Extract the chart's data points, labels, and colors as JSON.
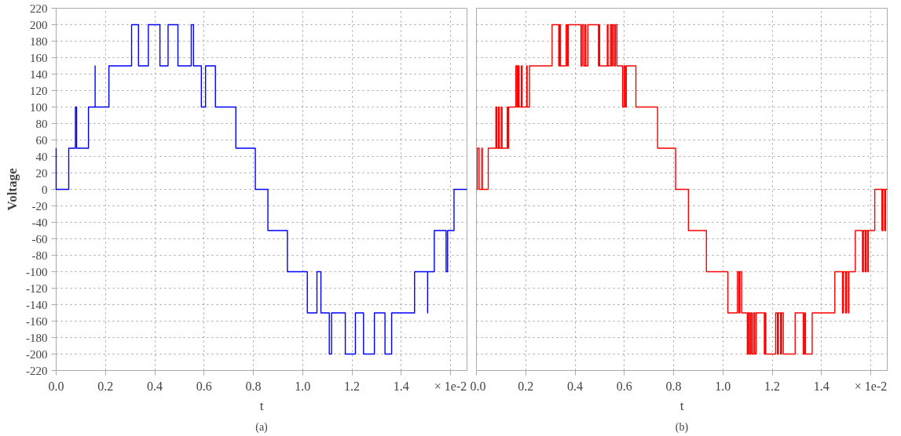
{
  "chart_data": [
    {
      "type": "step",
      "xlabel": "t",
      "ylabel": "Voltage",
      "annotations": [
        "(a)",
        "× 1e-2"
      ],
      "grid": true,
      "xlim": [
        0,
        1.6667
      ],
      "ylim": [
        -220,
        220
      ],
      "xticks": [
        {
          "value": 0,
          "label": "0.0"
        },
        0.2,
        0.4,
        0.6,
        0.8,
        {
          "value": 1,
          "label": "1.0"
        },
        1.2,
        1.4,
        {
          "value": 1.6,
          "label": null
        }
      ],
      "yticks": [
        -220,
        -200,
        -180,
        -160,
        -140,
        -120,
        -100,
        -80,
        -60,
        -40,
        -20,
        0,
        20,
        40,
        60,
        80,
        100,
        120,
        140,
        160,
        180,
        200,
        220
      ],
      "series": [
        {
          "color": "#0000ff",
          "x": [
            0,
            0,
            0.051,
            0.078,
            0.083,
            0.131,
            0.158,
            0.158,
            0.214,
            0.306,
            0.334,
            0.374,
            0.421,
            0.454,
            0.494,
            0.548,
            0.557,
            0.589,
            0.606,
            0.646,
            0.729,
            0.808,
            0.859,
            0.938,
            1.019,
            1.058,
            1.074,
            1.108,
            1.117,
            1.173,
            1.214,
            1.247,
            1.291,
            1.334,
            1.361,
            1.454,
            1.507,
            1.507,
            1.534,
            1.582,
            1.588,
            1.614,
            1.6667
          ],
          "values": [
            50,
            0,
            50,
            100,
            50,
            100,
            150,
            100,
            150,
            200,
            150,
            200,
            150,
            200,
            150,
            200,
            150,
            100,
            150,
            100,
            50,
            0,
            -50,
            -100,
            -150,
            -100,
            -150,
            -200,
            -150,
            -200,
            -150,
            -200,
            -150,
            -200,
            -150,
            -100,
            -150,
            -100,
            -50,
            -100,
            -50,
            0,
            0
          ]
        }
      ]
    },
    {
      "type": "step",
      "xlabel": "t",
      "annotations": [
        "(b)",
        "× 1e-2"
      ],
      "grid": true,
      "tick_labels": "x",
      "xlim": [
        0,
        1.6667
      ],
      "ylim": [
        -220,
        220
      ],
      "xticks": [
        {
          "value": 0,
          "label": "0.0"
        },
        0.2,
        0.4,
        0.6,
        0.8,
        {
          "value": 1,
          "label": "1.0"
        },
        1.2,
        1.4,
        {
          "value": 1.6,
          "label": null
        }
      ],
      "yticks": [
        -220,
        -200,
        -180,
        -160,
        -140,
        -120,
        -100,
        -80,
        -60,
        -40,
        -20,
        0,
        20,
        40,
        60,
        80,
        100,
        120,
        140,
        160,
        180,
        200,
        220
      ],
      "series": [
        {
          "color": "#ff0000",
          "x": [
            0,
            0.004,
            0.011,
            0.022,
            0.024,
            0.048,
            0.079,
            0.083,
            0.09,
            0.093,
            0.101,
            0.104,
            0.125,
            0.127,
            0.131,
            0.16,
            0.165,
            0.169,
            0.173,
            0.182,
            0.185,
            0.204,
            0.206,
            0.215,
            0.307,
            0.334,
            0.338,
            0.341,
            0.364,
            0.369,
            0.373,
            0.424,
            0.429,
            0.435,
            0.441,
            0.444,
            0.452,
            0.495,
            0.498,
            0.5,
            0.531,
            0.534,
            0.544,
            0.549,
            0.553,
            0.559,
            0.564,
            0.57,
            0.593,
            0.599,
            0.604,
            0.608,
            0.647,
            0.735,
            0.808,
            0.86,
            0.933,
            1.02,
            1.059,
            1.065,
            1.069,
            1.076,
            1.099,
            1.103,
            1.108,
            1.113,
            1.118,
            1.124,
            1.129,
            1.135,
            1.168,
            1.171,
            1.174,
            1.214,
            1.221,
            1.225,
            1.234,
            1.238,
            1.245,
            1.293,
            1.326,
            1.331,
            1.335,
            1.362,
            1.454,
            1.485,
            1.489,
            1.498,
            1.502,
            1.509,
            1.511,
            1.537,
            1.566,
            1.57,
            1.577,
            1.581,
            1.588,
            1.59,
            1.616,
            1.645,
            1.649,
            1.656,
            1.66,
            1.6667
          ],
          "values": [
            0,
            50,
            0,
            50,
            0,
            50,
            100,
            50,
            100,
            50,
            100,
            50,
            100,
            50,
            100,
            150,
            100,
            150,
            100,
            150,
            100,
            150,
            100,
            150,
            200,
            150,
            200,
            150,
            200,
            150,
            200,
            150,
            200,
            150,
            200,
            150,
            200,
            150,
            200,
            150,
            200,
            150,
            200,
            150,
            200,
            150,
            200,
            150,
            100,
            150,
            100,
            150,
            100,
            50,
            0,
            -50,
            -100,
            -150,
            -100,
            -150,
            -100,
            -150,
            -200,
            -150,
            -200,
            -150,
            -200,
            -150,
            -200,
            -150,
            -200,
            -150,
            -200,
            -150,
            -200,
            -150,
            -200,
            -150,
            -200,
            -150,
            -200,
            -150,
            -200,
            -150,
            -100,
            -150,
            -100,
            -150,
            -100,
            -150,
            -100,
            -50,
            -100,
            -50,
            -100,
            -50,
            -100,
            -50,
            0,
            -50,
            0,
            -50,
            0,
            0
          ]
        }
      ]
    }
  ]
}
